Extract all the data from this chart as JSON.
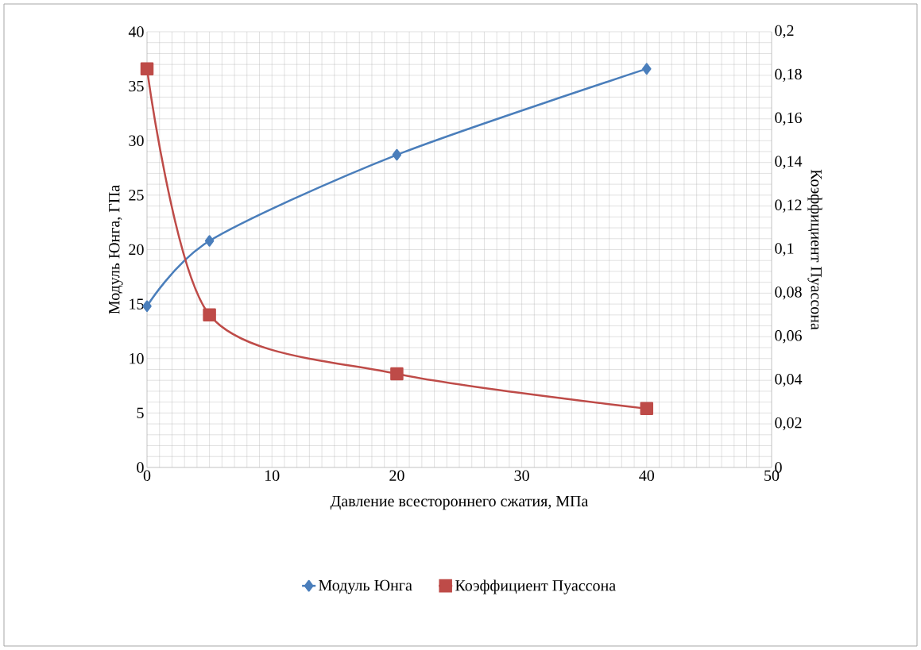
{
  "chart_data": {
    "type": "line",
    "xlabel": "Давление всестороннего сжатия, МПа",
    "ylabel": "Модуль Юнга, ГПа",
    "y2label": "Коэффициент Пуассона",
    "x": [
      0,
      5,
      20,
      40
    ],
    "series": [
      {
        "name": "Модуль Юнга",
        "color": "#4a7ebb",
        "marker": "diamond",
        "values": [
          14.8,
          20.8,
          28.7,
          36.6
        ]
      },
      {
        "name": "Коэффициент Пуассона",
        "color": "#be4b48",
        "marker": "square",
        "axis": "y2",
        "values": [
          0.183,
          0.07,
          0.043,
          0.027
        ]
      }
    ],
    "xlim": [
      0,
      50
    ],
    "xticks": [
      0,
      10,
      20,
      30,
      40,
      50
    ],
    "ylim": [
      0,
      40
    ],
    "yticks": [
      0,
      5,
      10,
      15,
      20,
      25,
      30,
      35,
      40
    ],
    "y2lim": [
      0,
      0.2
    ],
    "y2ticks": [
      0,
      {
        "value": 0.02,
        "label": "0,02"
      },
      {
        "value": 0.04,
        "label": "0,04"
      },
      {
        "value": 0.06,
        "label": "0,06"
      },
      {
        "value": 0.08,
        "label": "0,08"
      },
      {
        "value": 0.1,
        "label": "0,1"
      },
      {
        "value": 0.12,
        "label": "0,12"
      },
      {
        "value": 0.14,
        "label": "0,14"
      },
      {
        "value": 0.16,
        "label": "0,16"
      },
      {
        "value": 0.18,
        "label": "0,18"
      },
      {
        "value": 0.2,
        "label": "0,2"
      }
    ],
    "grid": true,
    "legend": "bottom",
    "line_style": "solid"
  }
}
